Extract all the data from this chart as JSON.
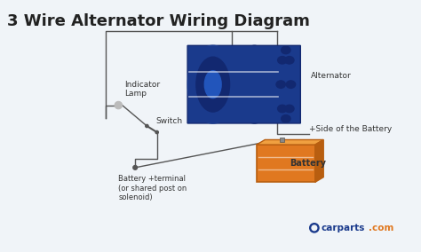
{
  "title": "3 Wire Alternator Wiring Diagram",
  "title_fontsize": 13,
  "title_color": "#222222",
  "bg_color": "#f0f4f8",
  "alternator_label": "Alternator",
  "battery_label": "Battery",
  "battery_side_label": "+Side of the Battery",
  "indicator_label": "Indicator\nLamp",
  "switch_label": "Switch",
  "battery_terminal_label": "Battery +terminal\n(or shared post on\nsolenoid)",
  "alternator_color": "#1a3a8c",
  "alternator_dark": "#122870",
  "battery_color": "#e07820",
  "battery_dark": "#b85e10",
  "wire_color": "#555555",
  "carparts_blue": "#1a3a8c",
  "carparts_orange": "#e07820",
  "label_fontsize": 6.5,
  "logo_text_blue": "carparts",
  "logo_text_orange": ".com"
}
